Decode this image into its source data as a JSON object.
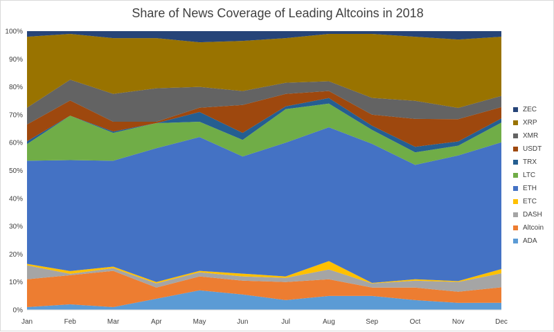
{
  "chart_data": {
    "type": "area",
    "stacked": true,
    "normalized": true,
    "title": "Share of News Coverage of Leading Altcoins in 2018",
    "categories": [
      "Jan",
      "Feb",
      "Mar",
      "Apr",
      "May",
      "Jun",
      "Jul",
      "Aug",
      "Sep",
      "Oct",
      "Nov",
      "Dec"
    ],
    "y_ticks": [
      "0%",
      "10%",
      "20%",
      "30%",
      "40%",
      "50%",
      "60%",
      "70%",
      "80%",
      "90%",
      "100%"
    ],
    "ylim": [
      0,
      100
    ],
    "grid": false,
    "legend_position": "right",
    "series": [
      {
        "name": "ADA",
        "color": "#5b9bd5",
        "values": [
          1,
          2,
          1,
          4,
          7,
          5.5,
          3.5,
          5,
          5,
          3.5,
          2.5,
          2.5
        ]
      },
      {
        "name": "Altcoin",
        "color": "#ed7d31",
        "values": [
          10,
          10.5,
          13,
          4,
          5,
          5,
          6.5,
          6,
          3,
          4.5,
          4,
          5.5
        ]
      },
      {
        "name": "DASH",
        "color": "#a5a5a5",
        "values": [
          5,
          0.5,
          1,
          1.5,
          1.5,
          1.5,
          1.5,
          3.5,
          1.5,
          2.5,
          3.5,
          5
        ]
      },
      {
        "name": "ETC",
        "color": "#ffc000",
        "values": [
          0.5,
          1,
          0.5,
          0.5,
          0.5,
          1,
          0.5,
          3,
          0.2,
          0.5,
          0.3,
          1.5
        ]
      },
      {
        "name": "ETH",
        "color": "#4472c4",
        "values": [
          37,
          40,
          38,
          48,
          48,
          42,
          48,
          48,
          50,
          41,
          45,
          45
        ]
      },
      {
        "name": "LTC",
        "color": "#70ad47",
        "values": [
          6,
          16,
          10,
          9,
          5.5,
          6,
          12,
          8.5,
          5,
          4.5,
          3.5,
          7
        ]
      },
      {
        "name": "TRX",
        "color": "#255e91",
        "values": [
          1,
          0,
          0.5,
          0,
          3.5,
          2.5,
          1,
          2,
          1.5,
          2,
          1.5,
          1.5
        ]
      },
      {
        "name": "USDT",
        "color": "#9e480e",
        "values": [
          6,
          5.5,
          3.5,
          0.5,
          1.5,
          10,
          4.5,
          2.5,
          4,
          10,
          8,
          4
        ]
      },
      {
        "name": "XMR",
        "color": "#636363",
        "values": [
          6,
          7.5,
          10,
          12,
          7.5,
          5,
          4,
          3.5,
          6,
          6.5,
          4,
          4
        ]
      },
      {
        "name": "XRP",
        "color": "#997300",
        "values": [
          25.5,
          16.5,
          20,
          18,
          16,
          18,
          16,
          17,
          23,
          23,
          24.5,
          21
        ]
      },
      {
        "name": "ZEC",
        "color": "#264478",
        "values": [
          2,
          1,
          2.5,
          2.5,
          4,
          3.5,
          2.5,
          1,
          1,
          2,
          3,
          2
        ]
      }
    ]
  }
}
